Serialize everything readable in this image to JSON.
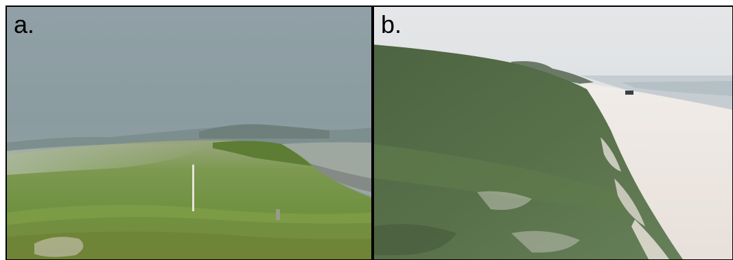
{
  "panels": [
    {
      "label": "a.",
      "scene": "foggy-dune-grass-wind"
    },
    {
      "label": "b.",
      "scene": "dune-slope-beach-vehicle"
    }
  ],
  "colors": {
    "fog_sky": "#8e9ea3",
    "grass_green": "#6e8f45",
    "dark_grass": "#44573a",
    "sand": "#ece6e0",
    "sky_b": "#dde0e2"
  }
}
